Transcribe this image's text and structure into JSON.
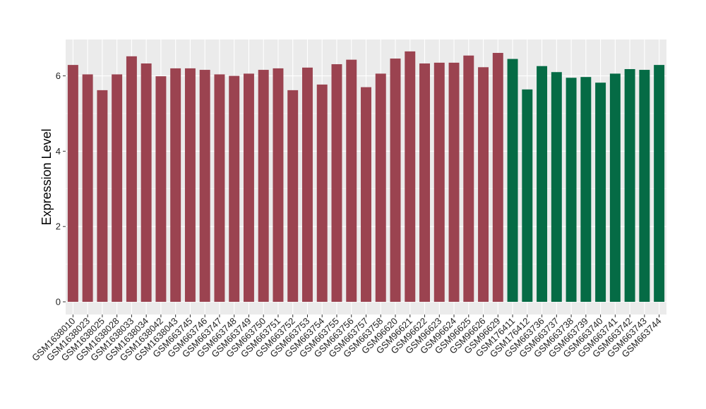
{
  "chart_data": {
    "type": "bar",
    "title": "",
    "xlabel": "",
    "ylabel": "Expression Level",
    "ylim": [
      0,
      6.9
    ],
    "yticks": [
      0,
      2,
      4,
      6
    ],
    "grid": true,
    "legend": "none",
    "colors": {
      "group1": "#9b4350",
      "group2": "#056b45",
      "panel": "#ebebeb",
      "grid": "#ffffff"
    },
    "categories": [
      "GSM1638010",
      "GSM1638023",
      "GSM1638025",
      "GSM1638028",
      "GSM1638033",
      "GSM1638034",
      "GSM1638042",
      "GSM1638043",
      "GSM663745",
      "GSM663746",
      "GSM663747",
      "GSM663748",
      "GSM663749",
      "GSM663750",
      "GSM663751",
      "GSM663752",
      "GSM663753",
      "GSM663754",
      "GSM663755",
      "GSM663756",
      "GSM663757",
      "GSM663758",
      "GSM96620",
      "GSM96621",
      "GSM96622",
      "GSM96623",
      "GSM96624",
      "GSM96625",
      "GSM96626",
      "GSM96629",
      "GSM176411",
      "GSM176412",
      "GSM663736",
      "GSM663737",
      "GSM663738",
      "GSM663739",
      "GSM663740",
      "GSM663741",
      "GSM663742",
      "GSM663743",
      "GSM663744"
    ],
    "values": [
      6.29,
      6.04,
      5.62,
      6.04,
      6.52,
      6.33,
      5.99,
      6.2,
      6.2,
      6.16,
      6.04,
      6.0,
      6.06,
      6.16,
      6.2,
      5.62,
      6.22,
      5.77,
      6.31,
      6.43,
      5.7,
      6.06,
      6.46,
      6.65,
      6.33,
      6.35,
      6.35,
      6.54,
      6.23,
      6.61,
      6.45,
      5.64,
      6.26,
      6.1,
      5.95,
      5.97,
      5.82,
      6.06,
      6.18,
      6.16,
      6.29
    ],
    "groups": [
      "group1",
      "group1",
      "group1",
      "group1",
      "group1",
      "group1",
      "group1",
      "group1",
      "group1",
      "group1",
      "group1",
      "group1",
      "group1",
      "group1",
      "group1",
      "group1",
      "group1",
      "group1",
      "group1",
      "group1",
      "group1",
      "group1",
      "group1",
      "group1",
      "group1",
      "group1",
      "group1",
      "group1",
      "group1",
      "group1",
      "group2",
      "group2",
      "group2",
      "group2",
      "group2",
      "group2",
      "group2",
      "group2",
      "group2",
      "group2",
      "group2"
    ]
  }
}
